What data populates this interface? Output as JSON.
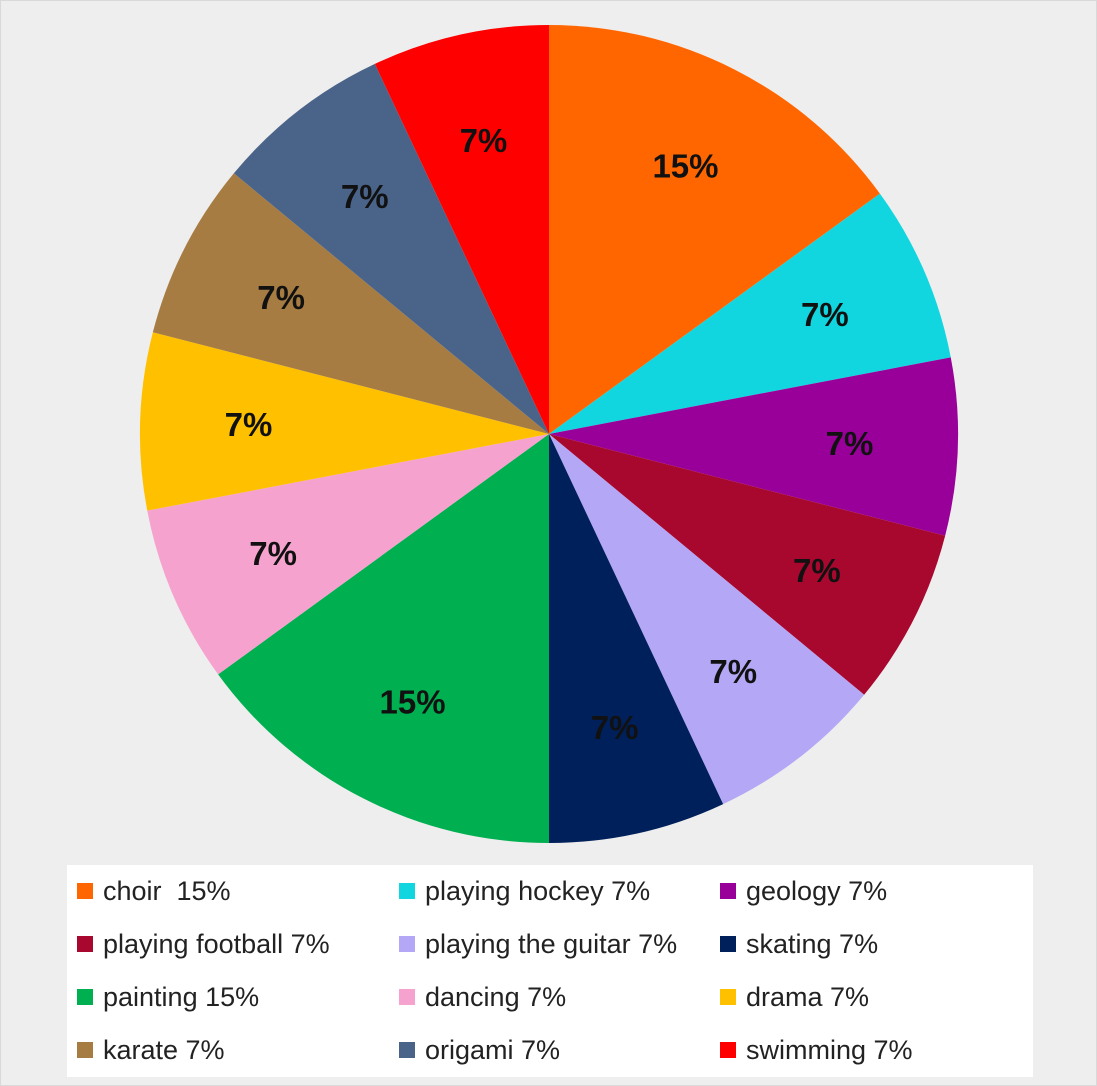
{
  "chart_data": {
    "type": "pie",
    "title": "",
    "slices": [
      {
        "label": "choir",
        "value": 15,
        "data_label": "15%",
        "legend_text": "choir  15%",
        "color": "#FF6600"
      },
      {
        "label": "playing hockey",
        "value": 7,
        "data_label": "7%",
        "legend_text": "playing hockey 7%",
        "color": "#11D6E0"
      },
      {
        "label": "geology",
        "value": 7,
        "data_label": "7%",
        "legend_text": "geology 7%",
        "color": "#980099"
      },
      {
        "label": "playing football",
        "value": 7,
        "data_label": "7%",
        "legend_text": "playing football 7%",
        "color": "#A8072E"
      },
      {
        "label": "playing the guitar",
        "value": 7,
        "data_label": "7%",
        "legend_text": "playing the guitar 7%",
        "color": "#B4A7F5"
      },
      {
        "label": "skating",
        "value": 7,
        "data_label": "7%",
        "legend_text": "skating 7%",
        "color": "#00205B"
      },
      {
        "label": "painting",
        "value": 15,
        "data_label": "15%",
        "legend_text": "painting 15%",
        "color": "#00AF50"
      },
      {
        "label": "dancing",
        "value": 7,
        "data_label": "7%",
        "legend_text": "dancing 7%",
        "color": "#F5A3CE"
      },
      {
        "label": "drama",
        "value": 7,
        "data_label": "7%",
        "legend_text": "drama 7%",
        "color": "#FFC000"
      },
      {
        "label": "karate",
        "value": 7,
        "data_label": "7%",
        "legend_text": "karate 7%",
        "color": "#A67C42"
      },
      {
        "label": "origami",
        "value": 7,
        "data_label": "7%",
        "legend_text": "origami 7%",
        "color": "#4A6489"
      },
      {
        "label": "swimming",
        "value": 7,
        "data_label": "7%",
        "legend_text": "swimming 7%",
        "color": "#FF0000"
      }
    ],
    "start_angle": "12 o'clock",
    "direction": "clockwise",
    "legend_position": "bottom",
    "data_label_color": "#111111"
  }
}
